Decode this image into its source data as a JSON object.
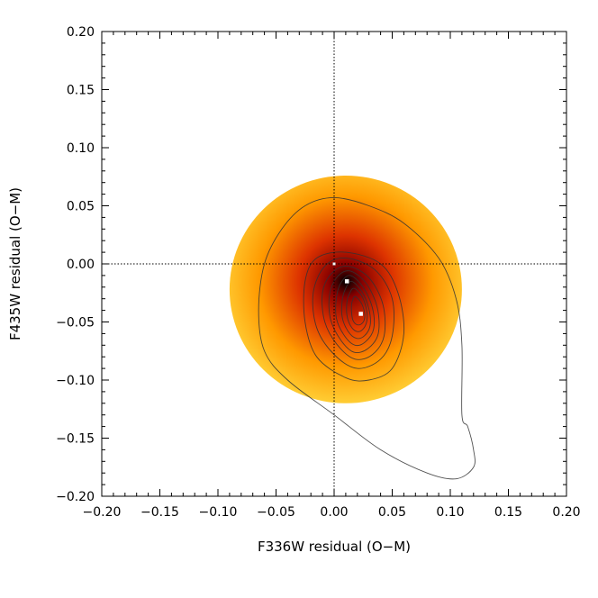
{
  "chart_data": {
    "type": "heatmap",
    "title": "",
    "xlabel": "F336W residual (O−M)",
    "ylabel": "F435W residual (O−M)",
    "xlim": [
      -0.2,
      0.2
    ],
    "ylim": [
      -0.2,
      0.2
    ],
    "x_ticks": [
      -0.2,
      -0.15,
      -0.1,
      -0.05,
      0.0,
      0.05,
      0.1,
      0.15,
      0.2
    ],
    "y_ticks": [
      -0.2,
      -0.15,
      -0.1,
      -0.05,
      0.0,
      0.05,
      0.1,
      0.15,
      0.2
    ],
    "x_tick_labels": [
      "−0.20",
      "−0.15",
      "−0.10",
      "−0.05",
      "0.00",
      "0.05",
      "0.10",
      "0.15",
      "0.20"
    ],
    "y_tick_labels": [
      "−0.20",
      "−0.15",
      "−0.10",
      "−0.05",
      "0.00",
      "0.05",
      "0.10",
      "0.15",
      "0.20"
    ],
    "reference_lines": {
      "x": 0.0,
      "y": 0.0,
      "style": "dotted"
    },
    "density_region": {
      "center": [
        0.01,
        -0.022
      ],
      "semi_axes": [
        0.1,
        0.098
      ],
      "peak": [
        0.01,
        -0.015
      ],
      "colormap": [
        "#ffcc33",
        "#ff9900",
        "#dd3300",
        "#880000",
        "#000000"
      ]
    },
    "contours": [
      {
        "level": 1,
        "points": [
          [
            0.0,
            0.057
          ],
          [
            0.03,
            0.05
          ],
          [
            0.06,
            0.035
          ],
          [
            0.09,
            0.005
          ],
          [
            0.105,
            -0.03
          ],
          [
            0.11,
            -0.07
          ],
          [
            0.11,
            -0.13
          ],
          [
            0.115,
            -0.14
          ],
          [
            0.12,
            -0.16
          ],
          [
            0.12,
            -0.175
          ],
          [
            0.105,
            -0.185
          ],
          [
            0.08,
            -0.18
          ],
          [
            0.04,
            -0.16
          ],
          [
            0.0,
            -0.13
          ],
          [
            -0.04,
            -0.1
          ],
          [
            -0.06,
            -0.075
          ],
          [
            -0.065,
            -0.04
          ],
          [
            -0.06,
            0.0
          ],
          [
            -0.045,
            0.03
          ],
          [
            -0.025,
            0.05
          ]
        ]
      },
      {
        "level": 2,
        "points": [
          [
            0.01,
            0.01
          ],
          [
            0.04,
            0.0
          ],
          [
            0.055,
            -0.025
          ],
          [
            0.06,
            -0.06
          ],
          [
            0.05,
            -0.09
          ],
          [
            0.03,
            -0.1
          ],
          [
            0.01,
            -0.098
          ],
          [
            -0.015,
            -0.08
          ],
          [
            -0.025,
            -0.05
          ],
          [
            -0.025,
            -0.015
          ],
          [
            -0.015,
            0.005
          ]
        ]
      },
      {
        "level": 3,
        "points": [
          [
            0.01,
            0.005
          ],
          [
            0.035,
            -0.005
          ],
          [
            0.05,
            -0.03
          ],
          [
            0.05,
            -0.062
          ],
          [
            0.04,
            -0.082
          ],
          [
            0.02,
            -0.09
          ],
          [
            0.0,
            -0.078
          ],
          [
            -0.015,
            -0.055
          ],
          [
            -0.018,
            -0.025
          ],
          [
            -0.008,
            -0.002
          ]
        ]
      },
      {
        "level": 4,
        "points": [
          [
            0.012,
            -0.002
          ],
          [
            0.03,
            -0.012
          ],
          [
            0.042,
            -0.035
          ],
          [
            0.043,
            -0.062
          ],
          [
            0.033,
            -0.078
          ],
          [
            0.018,
            -0.082
          ],
          [
            0.003,
            -0.07
          ],
          [
            -0.008,
            -0.05
          ],
          [
            -0.01,
            -0.025
          ],
          [
            -0.002,
            -0.008
          ]
        ]
      },
      {
        "level": 5,
        "points": [
          [
            0.013,
            -0.006
          ],
          [
            0.027,
            -0.016
          ],
          [
            0.037,
            -0.037
          ],
          [
            0.038,
            -0.06
          ],
          [
            0.029,
            -0.073
          ],
          [
            0.017,
            -0.076
          ],
          [
            0.006,
            -0.066
          ],
          [
            -0.003,
            -0.048
          ],
          [
            -0.004,
            -0.027
          ],
          [
            0.002,
            -0.012
          ]
        ]
      },
      {
        "level": 6,
        "points": [
          [
            0.014,
            -0.01
          ],
          [
            0.025,
            -0.02
          ],
          [
            0.033,
            -0.038
          ],
          [
            0.034,
            -0.056
          ],
          [
            0.027,
            -0.067
          ],
          [
            0.018,
            -0.07
          ],
          [
            0.009,
            -0.062
          ],
          [
            0.002,
            -0.047
          ],
          [
            0.002,
            -0.029
          ],
          [
            0.006,
            -0.016
          ]
        ]
      },
      {
        "level": 7,
        "points": [
          [
            0.015,
            -0.015
          ],
          [
            0.024,
            -0.024
          ],
          [
            0.03,
            -0.039
          ],
          [
            0.031,
            -0.053
          ],
          [
            0.026,
            -0.062
          ],
          [
            0.019,
            -0.064
          ],
          [
            0.012,
            -0.058
          ],
          [
            0.007,
            -0.046
          ],
          [
            0.007,
            -0.031
          ],
          [
            0.01,
            -0.021
          ]
        ]
      },
      {
        "level": 8,
        "points": [
          [
            0.017,
            -0.021
          ],
          [
            0.024,
            -0.028
          ],
          [
            0.028,
            -0.04
          ],
          [
            0.028,
            -0.05
          ],
          [
            0.024,
            -0.057
          ],
          [
            0.019,
            -0.058
          ],
          [
            0.014,
            -0.053
          ],
          [
            0.011,
            -0.044
          ],
          [
            0.011,
            -0.033
          ],
          [
            0.013,
            -0.026
          ]
        ]
      },
      {
        "level": 9,
        "points": [
          [
            0.018,
            -0.028
          ],
          [
            0.023,
            -0.033
          ],
          [
            0.026,
            -0.041
          ],
          [
            0.026,
            -0.048
          ],
          [
            0.023,
            -0.052
          ],
          [
            0.019,
            -0.052
          ],
          [
            0.016,
            -0.048
          ],
          [
            0.015,
            -0.041
          ],
          [
            0.015,
            -0.035
          ],
          [
            0.016,
            -0.031
          ]
        ]
      }
    ],
    "markers": [
      {
        "name": "origin",
        "x": 0.0,
        "y": 0.0
      },
      {
        "name": "peak",
        "x": 0.011,
        "y": -0.015
      },
      {
        "name": "mean",
        "x": 0.023,
        "y": -0.043
      }
    ],
    "grid": false,
    "legend": "none"
  }
}
